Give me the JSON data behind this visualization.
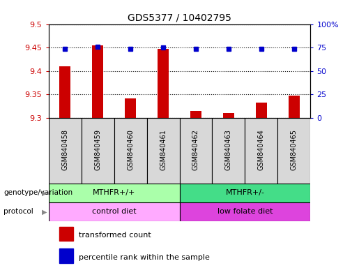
{
  "title": "GDS5377 / 10402795",
  "samples": [
    "GSM840458",
    "GSM840459",
    "GSM840460",
    "GSM840461",
    "GSM840462",
    "GSM840463",
    "GSM840464",
    "GSM840465"
  ],
  "transformed_counts": [
    9.41,
    9.455,
    9.342,
    9.448,
    9.315,
    9.31,
    9.333,
    9.348
  ],
  "percentile_ranks": [
    74,
    76,
    74,
    75,
    74,
    74,
    74,
    74
  ],
  "ylim_left": [
    9.3,
    9.5
  ],
  "ylim_right": [
    0,
    100
  ],
  "yticks_left": [
    9.3,
    9.35,
    9.4,
    9.45,
    9.5
  ],
  "yticks_right": [
    0,
    25,
    50,
    75,
    100
  ],
  "bar_color": "#cc0000",
  "dot_color": "#0000cc",
  "genotype_colors": [
    "#aaffaa",
    "#44dd88"
  ],
  "protocol_colors": [
    "#ffaaff",
    "#dd44dd"
  ],
  "genotype_labels": [
    "MTHFR+/+",
    "MTHFR+/-"
  ],
  "protocol_labels": [
    "control diet",
    "low folate diet"
  ],
  "group_split": 4,
  "legend_red_label": "transformed count",
  "legend_blue_label": "percentile rank within the sample",
  "left_label_color": "#cc0000",
  "right_label_color": "#0000cc",
  "title_fontsize": 10,
  "tick_fontsize": 8,
  "bar_width": 0.35,
  "sample_box_color": "#d8d8d8",
  "genotype_left_label": "genotype/variation",
  "protocol_left_label": "protocol"
}
